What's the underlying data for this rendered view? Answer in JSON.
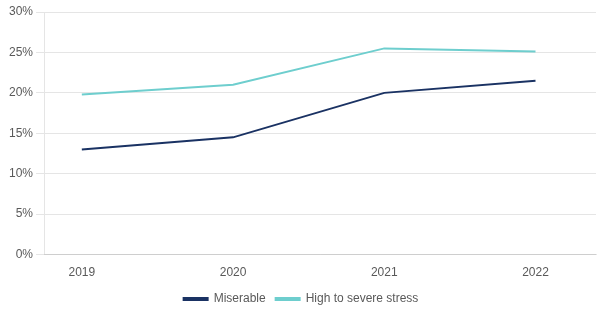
{
  "chart_data": {
    "type": "line",
    "x": [
      2019,
      2020,
      2021,
      2022
    ],
    "series": [
      {
        "name": "Miserable",
        "color": "#1a3263",
        "values": [
          0.13,
          0.145,
          0.2,
          0.215
        ]
      },
      {
        "name": "High to severe stress",
        "color": "#6ecece",
        "values": [
          0.198,
          0.21,
          0.255,
          0.251
        ]
      }
    ],
    "xlim": [
      2018.75,
      2022.4
    ],
    "xticks": [
      2019,
      2020,
      2021,
      2022
    ],
    "ylim": [
      0,
      0.3
    ],
    "yticks": [
      {
        "value": 0.0,
        "label": "0%"
      },
      {
        "value": 0.05,
        "label": "5%"
      },
      {
        "value": 0.1,
        "label": "10%"
      },
      {
        "value": 0.15,
        "label": "15%"
      },
      {
        "value": 0.2,
        "label": "20%"
      },
      {
        "value": 0.25,
        "label": "25%"
      },
      {
        "value": 0.3,
        "label": "30%"
      }
    ],
    "grid": "y",
    "legend": "bottom"
  }
}
